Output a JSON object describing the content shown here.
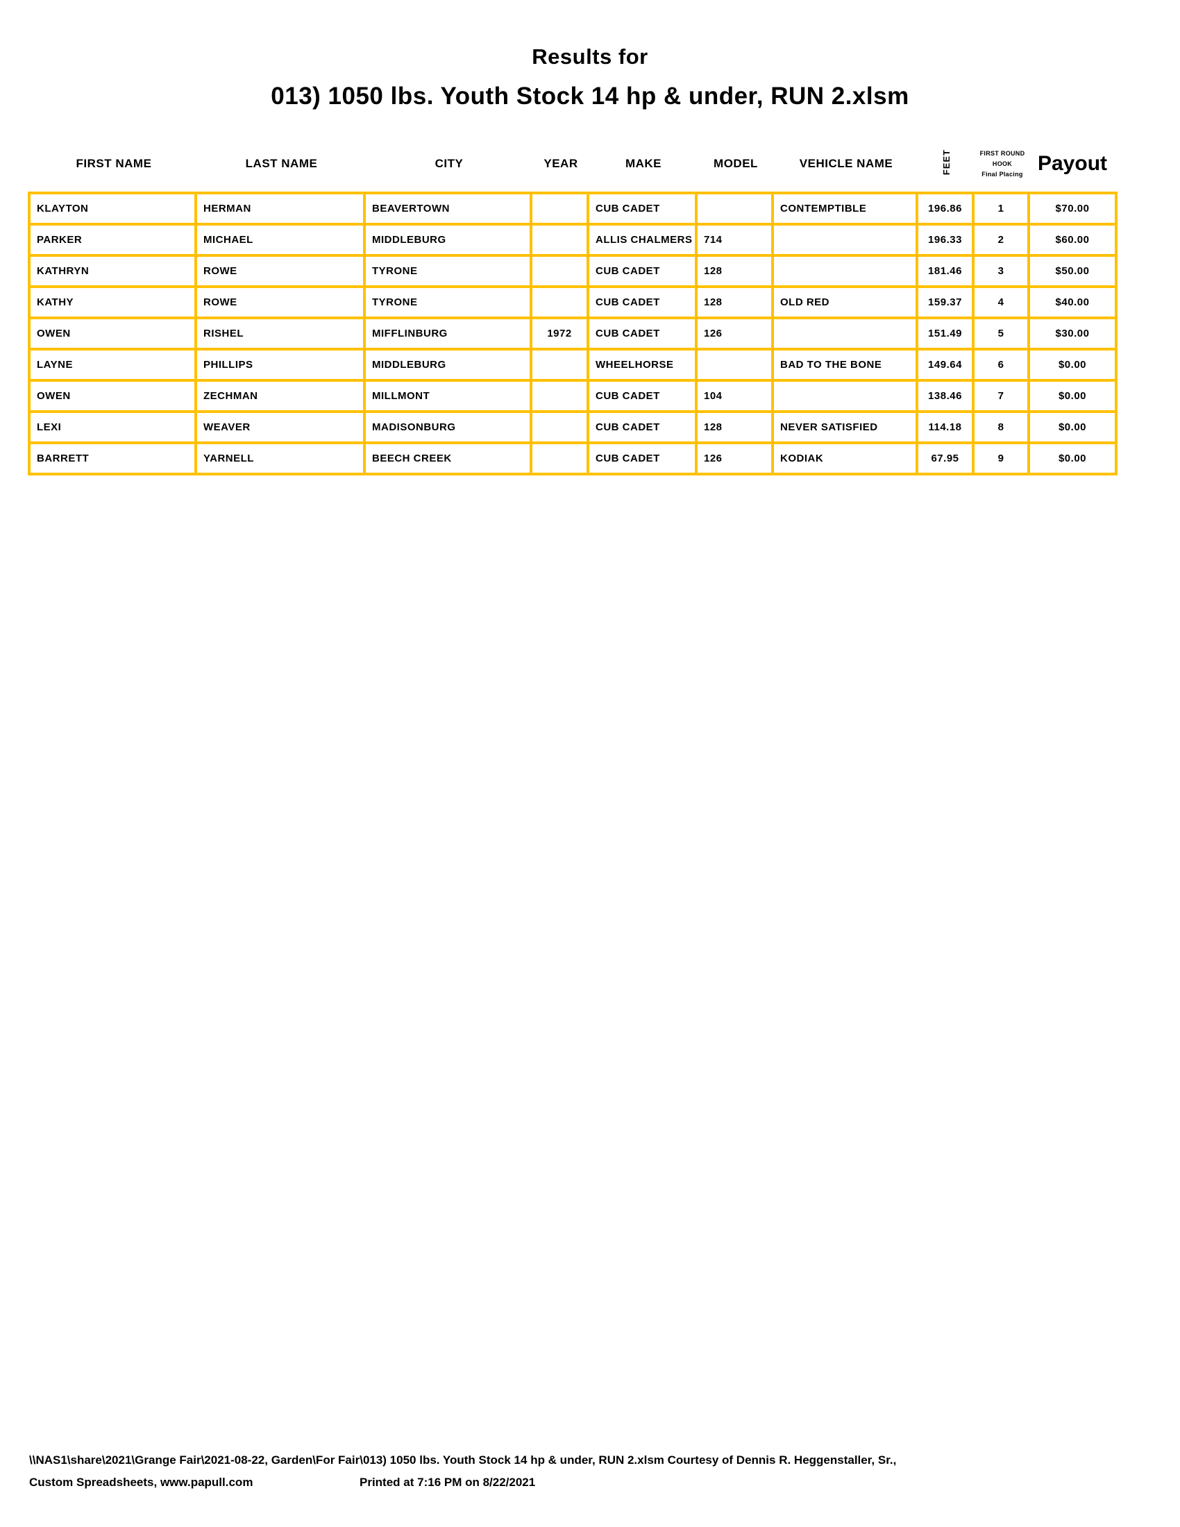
{
  "title": {
    "line1": "Results for",
    "line2": "013) 1050 lbs. Youth Stock 14 hp & under, RUN 2.xlsm"
  },
  "table": {
    "headers": {
      "first_name": "FIRST NAME",
      "last_name": "LAST NAME",
      "city": "CITY",
      "year": "YEAR",
      "make": "MAKE",
      "model": "MODEL",
      "vehicle_name": "VEHICLE NAME",
      "feet": "FEET",
      "hook": {
        "line1": "FIRST ROUND",
        "line2": "HOOK",
        "line3": "Final Placing"
      },
      "payout": "Payout"
    },
    "column_align": [
      "left",
      "left",
      "left",
      "center",
      "left",
      "left",
      "left",
      "center",
      "center",
      "center"
    ],
    "rows": [
      [
        "KLAYTON",
        "HERMAN",
        "BEAVERTOWN",
        "",
        "CUB CADET",
        "",
        "CONTEMPTIBLE",
        "196.86",
        "1",
        "$70.00"
      ],
      [
        "PARKER",
        "MICHAEL",
        "MIDDLEBURG",
        "",
        "ALLIS CHALMERS",
        "714",
        "",
        "196.33",
        "2",
        "$60.00"
      ],
      [
        "KATHRYN",
        "ROWE",
        "TYRONE",
        "",
        "CUB CADET",
        "128",
        "",
        "181.46",
        "3",
        "$50.00"
      ],
      [
        "KATHY",
        "ROWE",
        "TYRONE",
        "",
        "CUB CADET",
        "128",
        "OLD RED",
        "159.37",
        "4",
        "$40.00"
      ],
      [
        "OWEN",
        "RISHEL",
        "MIFFLINBURG",
        "1972",
        "CUB CADET",
        "126",
        "",
        "151.49",
        "5",
        "$30.00"
      ],
      [
        "LAYNE",
        "PHILLIPS",
        "MIDDLEBURG",
        "",
        "WHEELHORSE",
        "",
        "BAD TO THE BONE",
        "149.64",
        "6",
        "$0.00"
      ],
      [
        "OWEN",
        "ZECHMAN",
        "MILLMONT",
        "",
        "CUB CADET",
        "104",
        "",
        "138.46",
        "7",
        "$0.00"
      ],
      [
        "LEXI",
        "WEAVER",
        "MADISONBURG",
        "",
        "CUB CADET",
        "128",
        "NEVER SATISFIED",
        "114.18",
        "8",
        "$0.00"
      ],
      [
        "BARRETT",
        "YARNELL",
        "BEECH CREEK",
        "",
        "CUB CADET",
        "126",
        "KODIAK",
        "67.95",
        "9",
        "$0.00"
      ]
    ]
  },
  "footer": {
    "line1": "\\\\NAS1\\share\\2021\\Grange Fair\\2021-08-22, Garden\\For Fair\\013) 1050 lbs. Youth Stock 14 hp & under, RUN 2.xlsm  Courtesy of Dennis R. Heggenstaller, Sr.,",
    "line2_left": "Custom Spreadsheets, www.papull.com",
    "line2_right": "Printed at 7:16 PM on 8/22/2021"
  },
  "colors": {
    "table_border": "#FFC000",
    "text": "#000000",
    "background": "#FFFFFF"
  }
}
